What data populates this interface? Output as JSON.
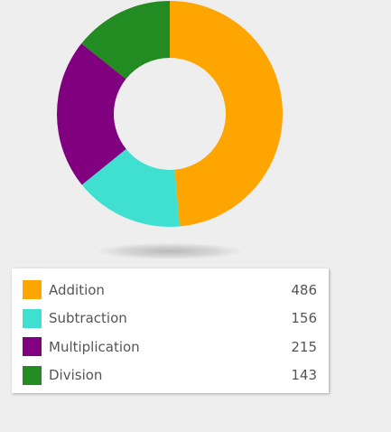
{
  "chart_data": {
    "type": "pie",
    "donut": true,
    "categories": [
      "Addition",
      "Subtraction",
      "Multiplication",
      "Division"
    ],
    "values": [
      486,
      156,
      215,
      143
    ],
    "colors": [
      "#ffa500",
      "#40e0d0",
      "#800080",
      "#228b22"
    ]
  },
  "legend": {
    "items": [
      {
        "label": "Addition",
        "value": "486",
        "color": "#ffa500"
      },
      {
        "label": "Subtraction",
        "value": "156",
        "color": "#40e0d0"
      },
      {
        "label": "Multiplication",
        "value": "215",
        "color": "#800080"
      },
      {
        "label": "Division",
        "value": "143",
        "color": "#228b22"
      }
    ]
  }
}
